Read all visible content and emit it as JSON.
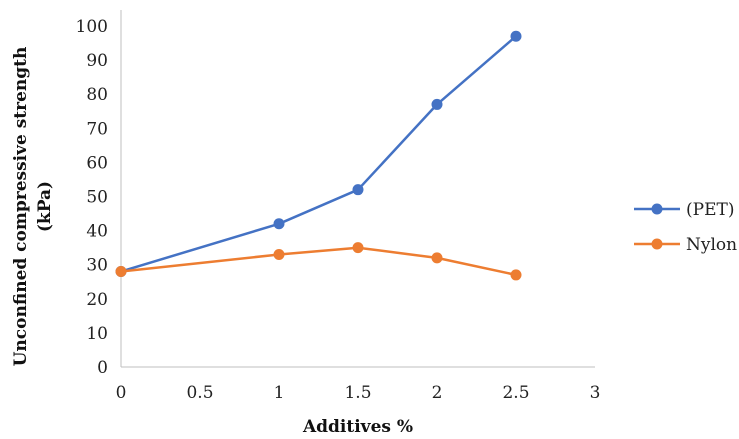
{
  "chart_data": {
    "type": "line",
    "title": "",
    "xlabel": "Additives %",
    "ylabel": "Unconfined compressive strength (kPa)",
    "ylabel_lines": [
      "Unconfined compressive strength",
      "(kPa)"
    ],
    "xlim": [
      0,
      3
    ],
    "ylim": [
      0,
      100
    ],
    "x_ticks": [
      "0",
      "0.5",
      "1",
      "1.5",
      "2",
      "2.5",
      "3"
    ],
    "y_ticks": [
      "0",
      "10",
      "20",
      "30",
      "40",
      "50",
      "60",
      "70",
      "80",
      "90",
      "100"
    ],
    "grid": false,
    "legend_position": "right",
    "series": [
      {
        "name": "(PET)",
        "color": "#4472C4",
        "x": [
          0,
          1,
          1.5,
          2,
          2.5
        ],
        "y": [
          28,
          42,
          52,
          77,
          97
        ]
      },
      {
        "name": "Nylon",
        "color": "#ED7D31",
        "x": [
          0,
          1,
          1.5,
          2,
          2.5
        ],
        "y": [
          28,
          33,
          35,
          32,
          27
        ]
      }
    ]
  }
}
